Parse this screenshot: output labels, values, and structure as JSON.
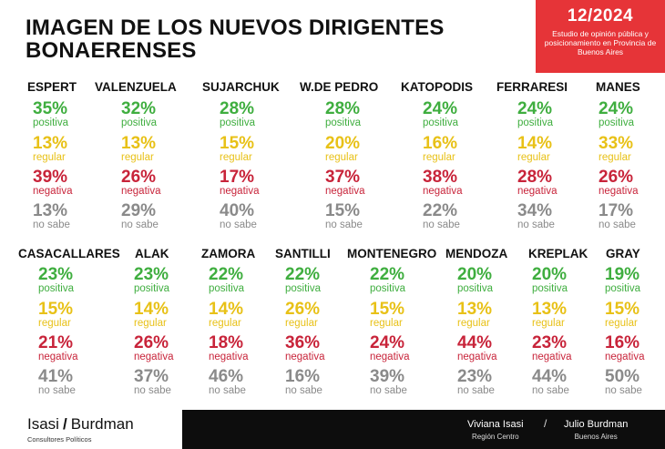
{
  "header": {
    "title_line1": "IMAGEN DE LOS NUEVOS DIRIGENTES",
    "title_line2": "BONAERENSES",
    "date": "12/2024",
    "description": "Estudio de opinión pública y posicionamiento en Provincia de Buenos Aires"
  },
  "colors": {
    "positiva": "#3fae3f",
    "regular": "#e8c117",
    "negativa": "#c8243a",
    "no_sabe": "#8a8a8a",
    "accent": "#e63438"
  },
  "labels": {
    "positiva": "positiva",
    "regular": "regular",
    "negativa": "negativa",
    "no_sabe": "no sabe"
  },
  "chart_data": {
    "type": "table",
    "title": "IMAGEN DE LOS NUEVOS DIRIGENTES BONAERENSES",
    "columns": [
      "positiva",
      "regular",
      "negativa",
      "no sabe"
    ],
    "rows": [
      {
        "name": "ESPERT",
        "positiva": "35%",
        "regular": "13%",
        "negativa": "39%",
        "no_sabe": "13%"
      },
      {
        "name": "VALENZUELA",
        "positiva": "32%",
        "regular": "13%",
        "negativa": "26%",
        "no_sabe": "29%"
      },
      {
        "name": "SUJARCHUK",
        "positiva": "28%",
        "regular": "15%",
        "negativa": "17%",
        "no_sabe": "40%"
      },
      {
        "name": "W.DE PEDRO",
        "positiva": "28%",
        "regular": "20%",
        "negativa": "37%",
        "no_sabe": "15%"
      },
      {
        "name": "KATOPODIS",
        "positiva": "24%",
        "regular": "16%",
        "negativa": "38%",
        "no_sabe": "22%"
      },
      {
        "name": "FERRARESI",
        "positiva": "24%",
        "regular": "14%",
        "negativa": "28%",
        "no_sabe": "34%"
      },
      {
        "name": "MANES",
        "positiva": "24%",
        "regular": "33%",
        "negativa": "26%",
        "no_sabe": "17%"
      },
      {
        "name": "CASACALLARES",
        "positiva": "23%",
        "regular": "15%",
        "negativa": "21%",
        "no_sabe": "41%"
      },
      {
        "name": "ALAK",
        "positiva": "23%",
        "regular": "14%",
        "negativa": "26%",
        "no_sabe": "37%"
      },
      {
        "name": "ZAMORA",
        "positiva": "22%",
        "regular": "14%",
        "negativa": "18%",
        "no_sabe": "46%"
      },
      {
        "name": "SANTILLI",
        "positiva": "22%",
        "regular": "26%",
        "negativa": "36%",
        "no_sabe": "16%"
      },
      {
        "name": "MONTENEGRO",
        "positiva": "22%",
        "regular": "15%",
        "negativa": "24%",
        "no_sabe": "39%"
      },
      {
        "name": "MENDOZA",
        "positiva": "20%",
        "regular": "13%",
        "negativa": "44%",
        "no_sabe": "23%"
      },
      {
        "name": "KREPLAK",
        "positiva": "20%",
        "regular": "13%",
        "negativa": "23%",
        "no_sabe": "44%"
      },
      {
        "name": "GRAY",
        "positiva": "19%",
        "regular": "15%",
        "negativa": "16%",
        "no_sabe": "50%"
      }
    ]
  },
  "footer": {
    "brand_left": "Isasi",
    "brand_slash": "/",
    "brand_right": "Burdman",
    "brand_sub": "Consultores Políticos",
    "person1": "Viviana Isasi",
    "person1_region": "Región Centro",
    "separator": "/",
    "person2": "Julio Burdman",
    "person2_region": "Buenos Aires"
  }
}
